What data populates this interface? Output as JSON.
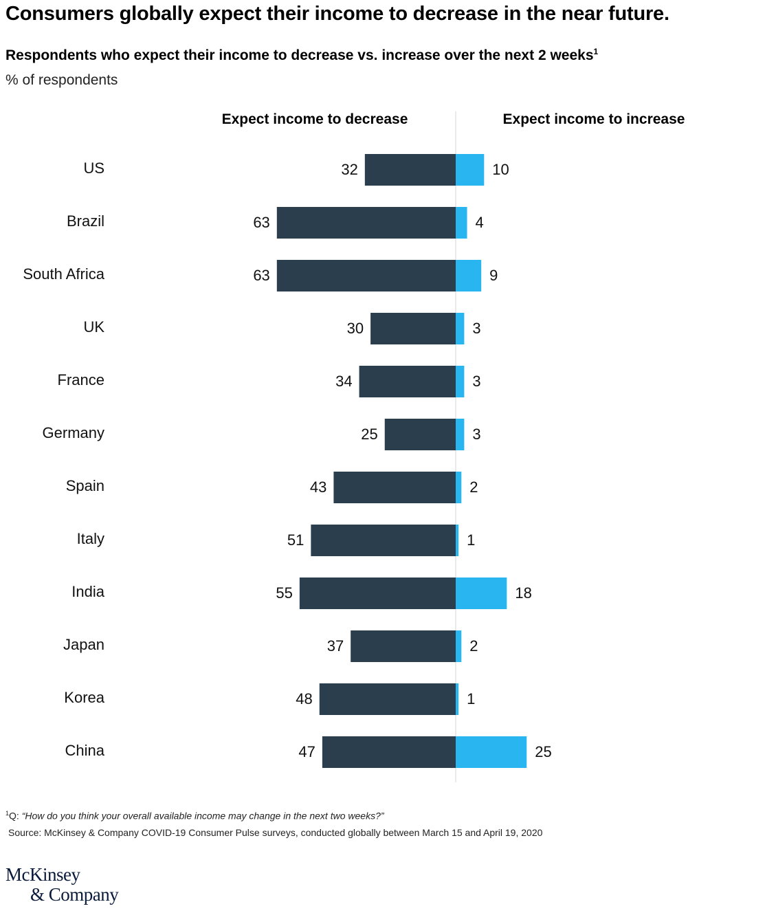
{
  "title": "Consumers globally expect their income to decrease in the near future.",
  "subtitle": "Respondents who expect their income to decrease vs. increase over the next 2 weeks",
  "subtitle_footnote_mark": "1",
  "unit_label": "% of respondents",
  "chart_data": {
    "type": "bar",
    "orientation": "horizontal-diverging",
    "categories": [
      "US",
      "Brazil",
      "South Africa",
      "UK",
      "France",
      "Germany",
      "Spain",
      "Italy",
      "India",
      "Japan",
      "Korea",
      "China"
    ],
    "series": [
      {
        "name": "Expect income to decrease",
        "color": "#2b3e4d",
        "values": [
          32,
          63,
          63,
          30,
          34,
          25,
          43,
          51,
          55,
          37,
          48,
          47
        ]
      },
      {
        "name": "Expect income to increase",
        "color": "#28b5f0",
        "values": [
          10,
          4,
          9,
          3,
          3,
          3,
          2,
          1,
          18,
          2,
          1,
          25
        ]
      }
    ],
    "grid": false,
    "legend": "top (column headers)"
  },
  "footnote_mark": "1",
  "footnote_prefix": "Q: ",
  "footnote_text": "“How do you think your overall available income may change in the next two weeks?”",
  "source": "Source: McKinsey & Company COVID-19 Consumer Pulse surveys, conducted globally between March 15 and April 19, 2020",
  "logo": {
    "line1": "McKinsey",
    "line2": "& Company"
  }
}
